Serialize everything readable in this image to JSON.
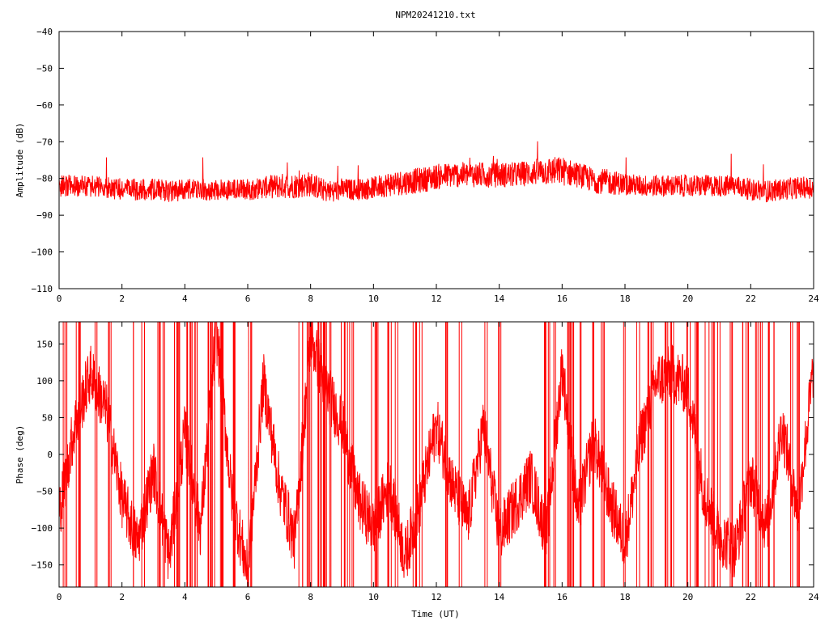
{
  "title": "NPM20241210.txt",
  "colors": {
    "series": "#ff0000",
    "axis": "#000000",
    "background": "#ffffff"
  },
  "chart_data": [
    {
      "type": "line",
      "title": "NPM20241210.txt",
      "ylabel": "Amplitude (dB)",
      "xlabel": "",
      "xlim": [
        0,
        24
      ],
      "ylim": [
        -110,
        -40
      ],
      "xticks": [
        "0",
        "2",
        "4",
        "6",
        "8",
        "10",
        "12",
        "14",
        "16",
        "18",
        "20",
        "22",
        "24"
      ],
      "yticks": [
        "-40",
        "-50",
        "-60",
        "-70",
        "-80",
        "-90",
        "-100",
        "-110"
      ],
      "grid": false,
      "series": [
        {
          "x": [
            0,
            0.5,
            1,
            1.5,
            2,
            2.5,
            3,
            3.5,
            4,
            4.5,
            5,
            5.5,
            6,
            6.5,
            7,
            7.5,
            8,
            8.5,
            9,
            9.5,
            10,
            10.5,
            11,
            11.5,
            12,
            12.5,
            13,
            13.5,
            14,
            14.5,
            15,
            15.5,
            16,
            16.5,
            17,
            17.5,
            18,
            18.5,
            19,
            19.5,
            20,
            20.5,
            21,
            21.5,
            22,
            22.5,
            23,
            23.5,
            24
          ],
          "y": [
            -82,
            -82,
            -82,
            -82.5,
            -83,
            -83,
            -83,
            -83.5,
            -83,
            -83,
            -83,
            -83,
            -83,
            -82.5,
            -82,
            -82,
            -81.5,
            -83.5,
            -83,
            -83,
            -82.5,
            -81.5,
            -81,
            -80.5,
            -79.5,
            -79,
            -79,
            -79,
            -79,
            -79,
            -78.5,
            -78,
            -78,
            -79,
            -80.5,
            -81,
            -81.5,
            -82,
            -82,
            -82,
            -82,
            -82,
            -82,
            -82,
            -83,
            -83.5,
            -83,
            -82.5,
            -82.5
          ],
          "spread": [
            3,
            3,
            3,
            3,
            3,
            3,
            3,
            3,
            3,
            3,
            3,
            3,
            3,
            3,
            3.5,
            3.5,
            3.5,
            3,
            3,
            3,
            3,
            3.5,
            3.5,
            3.5,
            3.5,
            3.5,
            3.5,
            3.5,
            3.5,
            3.5,
            3.5,
            4,
            4,
            3.5,
            3.5,
            3.5,
            3,
            3,
            3,
            3,
            3,
            3,
            3,
            3,
            3,
            3,
            3,
            3,
            3
          ]
        }
      ]
    },
    {
      "type": "line",
      "ylabel": "Phase (deg)",
      "xlabel": "Time (UT)",
      "xlim": [
        0,
        24
      ],
      "ylim": [
        -180,
        180
      ],
      "xticks": [
        "0",
        "2",
        "4",
        "6",
        "8",
        "10",
        "12",
        "14",
        "16",
        "18",
        "20",
        "22",
        "24"
      ],
      "yticks": [
        "150",
        "100",
        "50",
        "0",
        "-50",
        "-100",
        "-150"
      ],
      "grid": false,
      "series": [
        {
          "x": [
            0,
            0.5,
            1,
            1.5,
            2,
            2.5,
            3,
            3.5,
            4,
            4.5,
            5,
            5.5,
            6,
            6.5,
            7,
            7.5,
            8,
            8.5,
            9,
            9.5,
            10,
            10.5,
            11,
            11.5,
            12,
            12.5,
            13,
            13.5,
            14,
            14.5,
            15,
            15.5,
            16,
            16.5,
            17,
            17.5,
            18,
            18.5,
            19,
            19.5,
            20,
            20.5,
            21,
            21.5,
            22,
            22.5,
            23,
            23.5,
            24
          ],
          "y": [
            -80,
            40,
            110,
            60,
            -60,
            -120,
            -20,
            -140,
            30,
            -100,
            170,
            -60,
            -160,
            100,
            -40,
            -120,
            160,
            90,
            40,
            -60,
            -100,
            -40,
            -140,
            -60,
            40,
            -40,
            -90,
            40,
            -110,
            -70,
            -30,
            -110,
            120,
            -80,
            20,
            -60,
            -120,
            20,
            100,
            110,
            90,
            -50,
            -110,
            -130,
            -30,
            -100,
            40,
            -80,
            120
          ],
          "wraps": [
            0.2,
            0.6,
            1.2,
            1.6,
            2.3,
            2.7,
            3.2,
            3.3,
            3.6,
            3.7,
            3.8,
            4.1,
            4.2,
            4.3,
            4.4,
            4.8,
            4.9,
            5.1,
            5.2,
            5.5,
            5.6,
            6.1,
            7.7,
            7.9,
            8.0,
            8.3,
            8.4,
            8.5,
            8.6,
            9.0,
            9.1,
            9.3,
            10.0,
            10.1,
            10.5,
            10.7,
            11.3,
            11.5,
            12.3,
            12.8,
            13.6,
            14.0,
            15.5,
            15.6,
            15.8,
            16.2,
            16.3,
            16.6,
            17.0,
            17.3,
            18.0,
            18.4,
            18.8,
            18.9,
            19.3,
            19.5,
            20.0,
            20.3,
            20.6,
            20.8,
            21.0,
            21.4,
            21.7,
            21.9,
            22.2,
            22.3,
            22.6,
            22.8,
            23.3,
            23.5
          ],
          "spread": 40
        }
      ]
    }
  ]
}
